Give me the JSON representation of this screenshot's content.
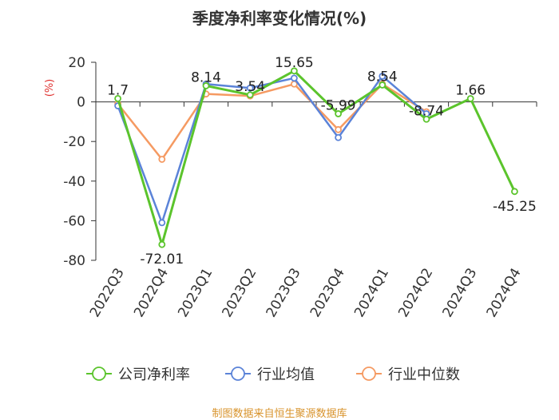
{
  "chart_data": {
    "type": "line",
    "title": "季度净利率变化情况(%)",
    "ylabel": "(%)",
    "ylim": [
      -80,
      20
    ],
    "yticks": [
      20,
      0,
      -20,
      -40,
      -60,
      -80
    ],
    "categories": [
      "2022Q3",
      "2022Q4",
      "2023Q1",
      "2023Q2",
      "2023Q3",
      "2023Q4",
      "2024Q1",
      "2024Q2",
      "2024Q3",
      "2024Q4"
    ],
    "series": [
      {
        "name": "公司净利率",
        "color": "#5bc42c",
        "values": [
          1.7,
          -72.01,
          8.14,
          3.54,
          15.65,
          -5.99,
          8.54,
          -8.74,
          1.66,
          -45.25
        ]
      },
      {
        "name": "行业均值",
        "color": "#5b83d8",
        "values": [
          -2,
          -61,
          9,
          7,
          12,
          -18,
          13,
          -6,
          null,
          null
        ]
      },
      {
        "name": "行业中位数",
        "color": "#f59a62",
        "values": [
          -1,
          -29,
          4,
          3,
          9,
          -14,
          9,
          -5,
          null,
          null
        ]
      }
    ],
    "data_labels": [
      "1.7",
      "-72.01",
      "8.14",
      "3.54",
      "15.65",
      "-5.99",
      "8.54",
      "-8.74",
      "1.66",
      "-45.25"
    ],
    "legend_position": "bottom",
    "grid": false
  },
  "footer": {
    "source": "制图数据来自恒生聚源数据库"
  }
}
